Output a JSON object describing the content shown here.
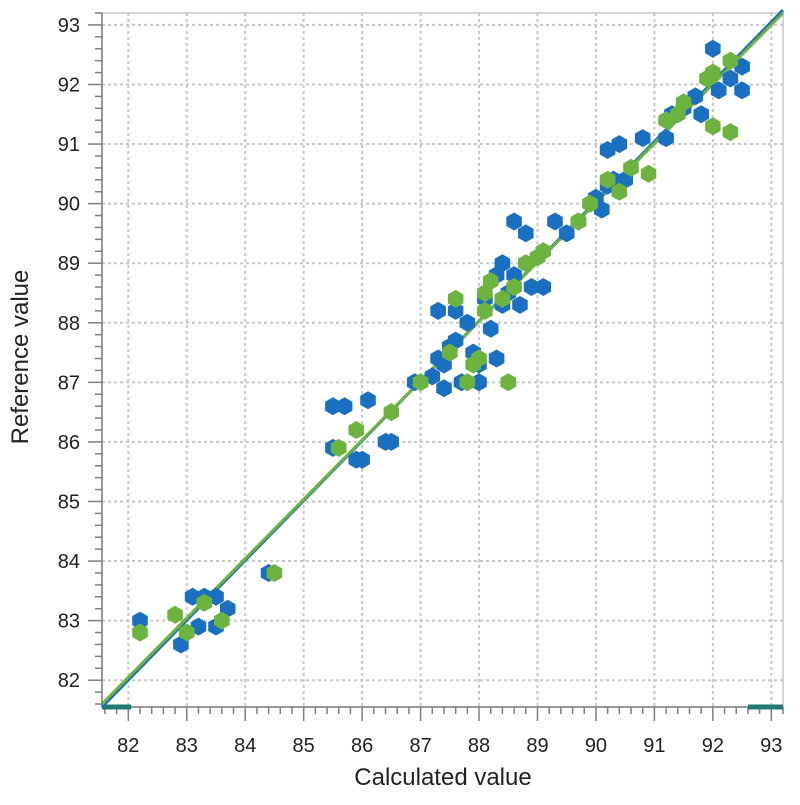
{
  "chart_data": {
    "type": "scatter",
    "title": "",
    "xlabel": "Calculated value",
    "ylabel": "Reference value",
    "xlim": [
      81.55,
      93.2
    ],
    "ylim": [
      81.55,
      93.2
    ],
    "xticks": [
      82,
      83,
      84,
      85,
      86,
      87,
      88,
      89,
      90,
      91,
      92,
      93
    ],
    "yticks": [
      82,
      83,
      84,
      85,
      86,
      87,
      88,
      89,
      90,
      91,
      92,
      93
    ],
    "grid": true,
    "legend": "none",
    "colors": {
      "series_a": "#1a6fc0",
      "series_b": "#6db33f",
      "grid": "#c8c8c8",
      "axis": "#7f7f7f",
      "range_marker": "#1f7a74"
    },
    "series": [
      {
        "color": "#1a6fc0",
        "points": [
          [
            82.2,
            83.0
          ],
          [
            82.9,
            82.6
          ],
          [
            83.1,
            83.4
          ],
          [
            83.2,
            82.9
          ],
          [
            83.3,
            83.4
          ],
          [
            83.5,
            83.4
          ],
          [
            83.5,
            82.9
          ],
          [
            83.7,
            83.2
          ],
          [
            84.4,
            83.8
          ],
          [
            85.5,
            85.9
          ],
          [
            85.5,
            86.6
          ],
          [
            85.7,
            86.6
          ],
          [
            85.9,
            85.7
          ],
          [
            86.0,
            85.7
          ],
          [
            86.1,
            86.7
          ],
          [
            86.4,
            86.0
          ],
          [
            86.5,
            86.0
          ],
          [
            86.9,
            87.0
          ],
          [
            87.2,
            87.1
          ],
          [
            87.3,
            87.4
          ],
          [
            87.3,
            88.2
          ],
          [
            87.4,
            86.9
          ],
          [
            87.4,
            87.3
          ],
          [
            87.5,
            87.6
          ],
          [
            87.6,
            88.2
          ],
          [
            87.6,
            87.7
          ],
          [
            87.7,
            87.0
          ],
          [
            87.8,
            88.0
          ],
          [
            87.9,
            87.5
          ],
          [
            88.0,
            87.3
          ],
          [
            88.0,
            87.0
          ],
          [
            88.1,
            88.4
          ],
          [
            88.2,
            87.9
          ],
          [
            88.3,
            87.4
          ],
          [
            88.3,
            88.8
          ],
          [
            88.4,
            88.3
          ],
          [
            88.4,
            89.0
          ],
          [
            88.5,
            88.5
          ],
          [
            88.6,
            88.8
          ],
          [
            88.6,
            89.7
          ],
          [
            88.7,
            88.3
          ],
          [
            88.8,
            89.5
          ],
          [
            88.9,
            88.6
          ],
          [
            89.1,
            88.6
          ],
          [
            89.3,
            89.7
          ],
          [
            89.5,
            89.5
          ],
          [
            89.7,
            89.7
          ],
          [
            89.9,
            90.0
          ],
          [
            90.0,
            90.1
          ],
          [
            90.1,
            89.9
          ],
          [
            90.2,
            90.3
          ],
          [
            90.2,
            90.9
          ],
          [
            90.3,
            90.4
          ],
          [
            90.4,
            91.0
          ],
          [
            90.5,
            90.4
          ],
          [
            90.8,
            91.1
          ],
          [
            91.2,
            91.1
          ],
          [
            91.3,
            91.5
          ],
          [
            91.5,
            91.6
          ],
          [
            91.7,
            91.8
          ],
          [
            91.8,
            91.5
          ],
          [
            92.0,
            92.6
          ],
          [
            92.1,
            91.9
          ],
          [
            92.3,
            92.1
          ],
          [
            92.5,
            91.9
          ],
          [
            92.5,
            92.3
          ]
        ]
      },
      {
        "color": "#6db33f",
        "points": [
          [
            82.2,
            82.8
          ],
          [
            82.8,
            83.1
          ],
          [
            83.0,
            82.8
          ],
          [
            83.3,
            83.3
          ],
          [
            83.6,
            83.0
          ],
          [
            84.5,
            83.8
          ],
          [
            85.6,
            85.9
          ],
          [
            85.9,
            86.2
          ],
          [
            86.5,
            86.5
          ],
          [
            87.0,
            87.0
          ],
          [
            87.5,
            87.5
          ],
          [
            87.6,
            88.4
          ],
          [
            87.8,
            87.0
          ],
          [
            87.9,
            87.3
          ],
          [
            88.0,
            87.4
          ],
          [
            88.1,
            88.2
          ],
          [
            88.1,
            88.5
          ],
          [
            88.2,
            88.7
          ],
          [
            88.4,
            88.4
          ],
          [
            88.6,
            88.6
          ],
          [
            88.8,
            89.0
          ],
          [
            89.0,
            89.1
          ],
          [
            89.1,
            89.2
          ],
          [
            88.5,
            87.0
          ],
          [
            89.7,
            89.7
          ],
          [
            89.9,
            90.0
          ],
          [
            90.2,
            90.4
          ],
          [
            90.4,
            90.2
          ],
          [
            90.6,
            90.6
          ],
          [
            90.9,
            90.5
          ],
          [
            91.2,
            91.4
          ],
          [
            91.4,
            91.5
          ],
          [
            91.5,
            91.7
          ],
          [
            91.9,
            92.1
          ],
          [
            92.0,
            92.2
          ],
          [
            92.3,
            92.4
          ],
          [
            92.0,
            91.3
          ],
          [
            92.3,
            91.2
          ]
        ]
      }
    ],
    "fit_lines": [
      {
        "color": "#1a6fc0",
        "from": [
          81.55,
          81.55
        ],
        "to": [
          93.2,
          93.25
        ]
      },
      {
        "color": "#6db33f",
        "from": [
          81.55,
          81.6
        ],
        "to": [
          93.2,
          93.2
        ]
      }
    ],
    "x_range_markers": [
      [
        81.55,
        82.05
      ],
      [
        92.6,
        93.2
      ]
    ]
  }
}
